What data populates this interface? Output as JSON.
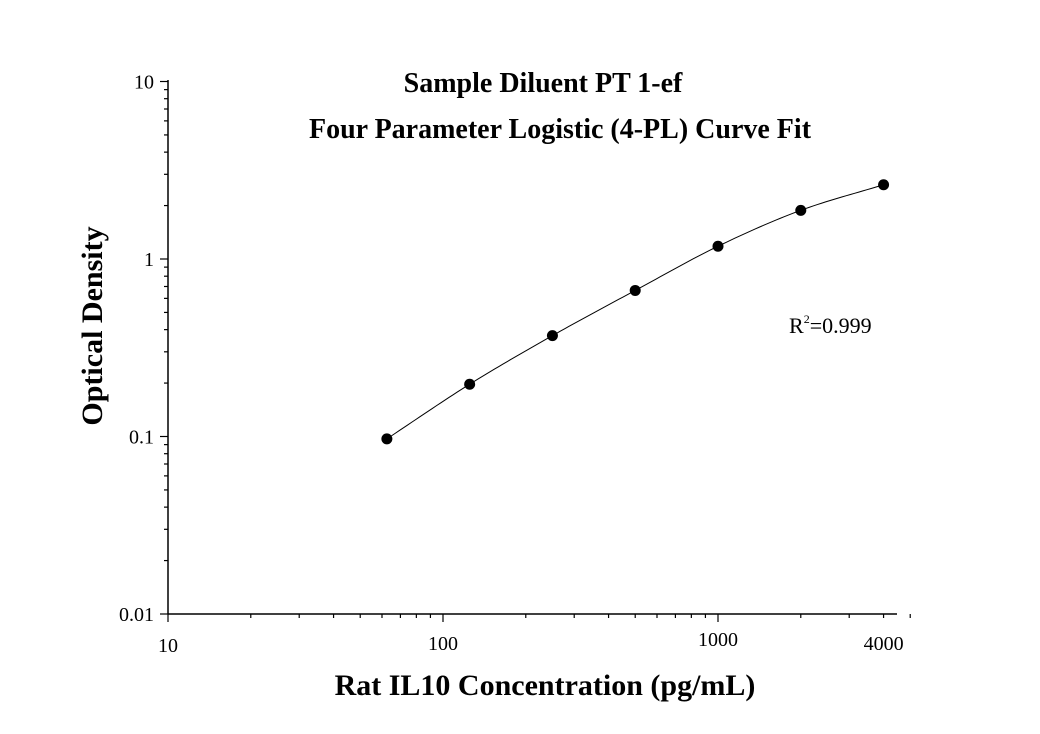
{
  "chart_data": {
    "type": "scatter",
    "title": "Sample Diluent PT 1-ef",
    "subtitle": "Four Parameter Logistic (4-PL) Curve Fit",
    "xlabel": "Rat IL10 Concentration (pg/mL)",
    "ylabel": "Optical Density",
    "x_scale": "log",
    "y_scale": "log",
    "xlim": [
      10,
      5000
    ],
    "ylim": [
      0.01,
      10
    ],
    "x_ticks": [
      "10",
      "100",
      "1000",
      "4000"
    ],
    "x_tick_values": [
      10,
      100,
      1000,
      4000
    ],
    "y_ticks": [
      "0.01",
      "0.1",
      "1",
      "10"
    ],
    "y_tick_values": [
      0.01,
      0.1,
      1,
      10
    ],
    "grid": false,
    "series": [
      {
        "x": [
          62.5,
          125,
          250,
          500,
          1000,
          2000,
          4000
        ],
        "y": [
          0.097,
          0.197,
          0.37,
          0.665,
          1.18,
          1.88,
          2.62
        ],
        "fit": "4-PL"
      }
    ],
    "annotation": {
      "base": "R",
      "sup": "2",
      "rest": "=0.999"
    }
  }
}
